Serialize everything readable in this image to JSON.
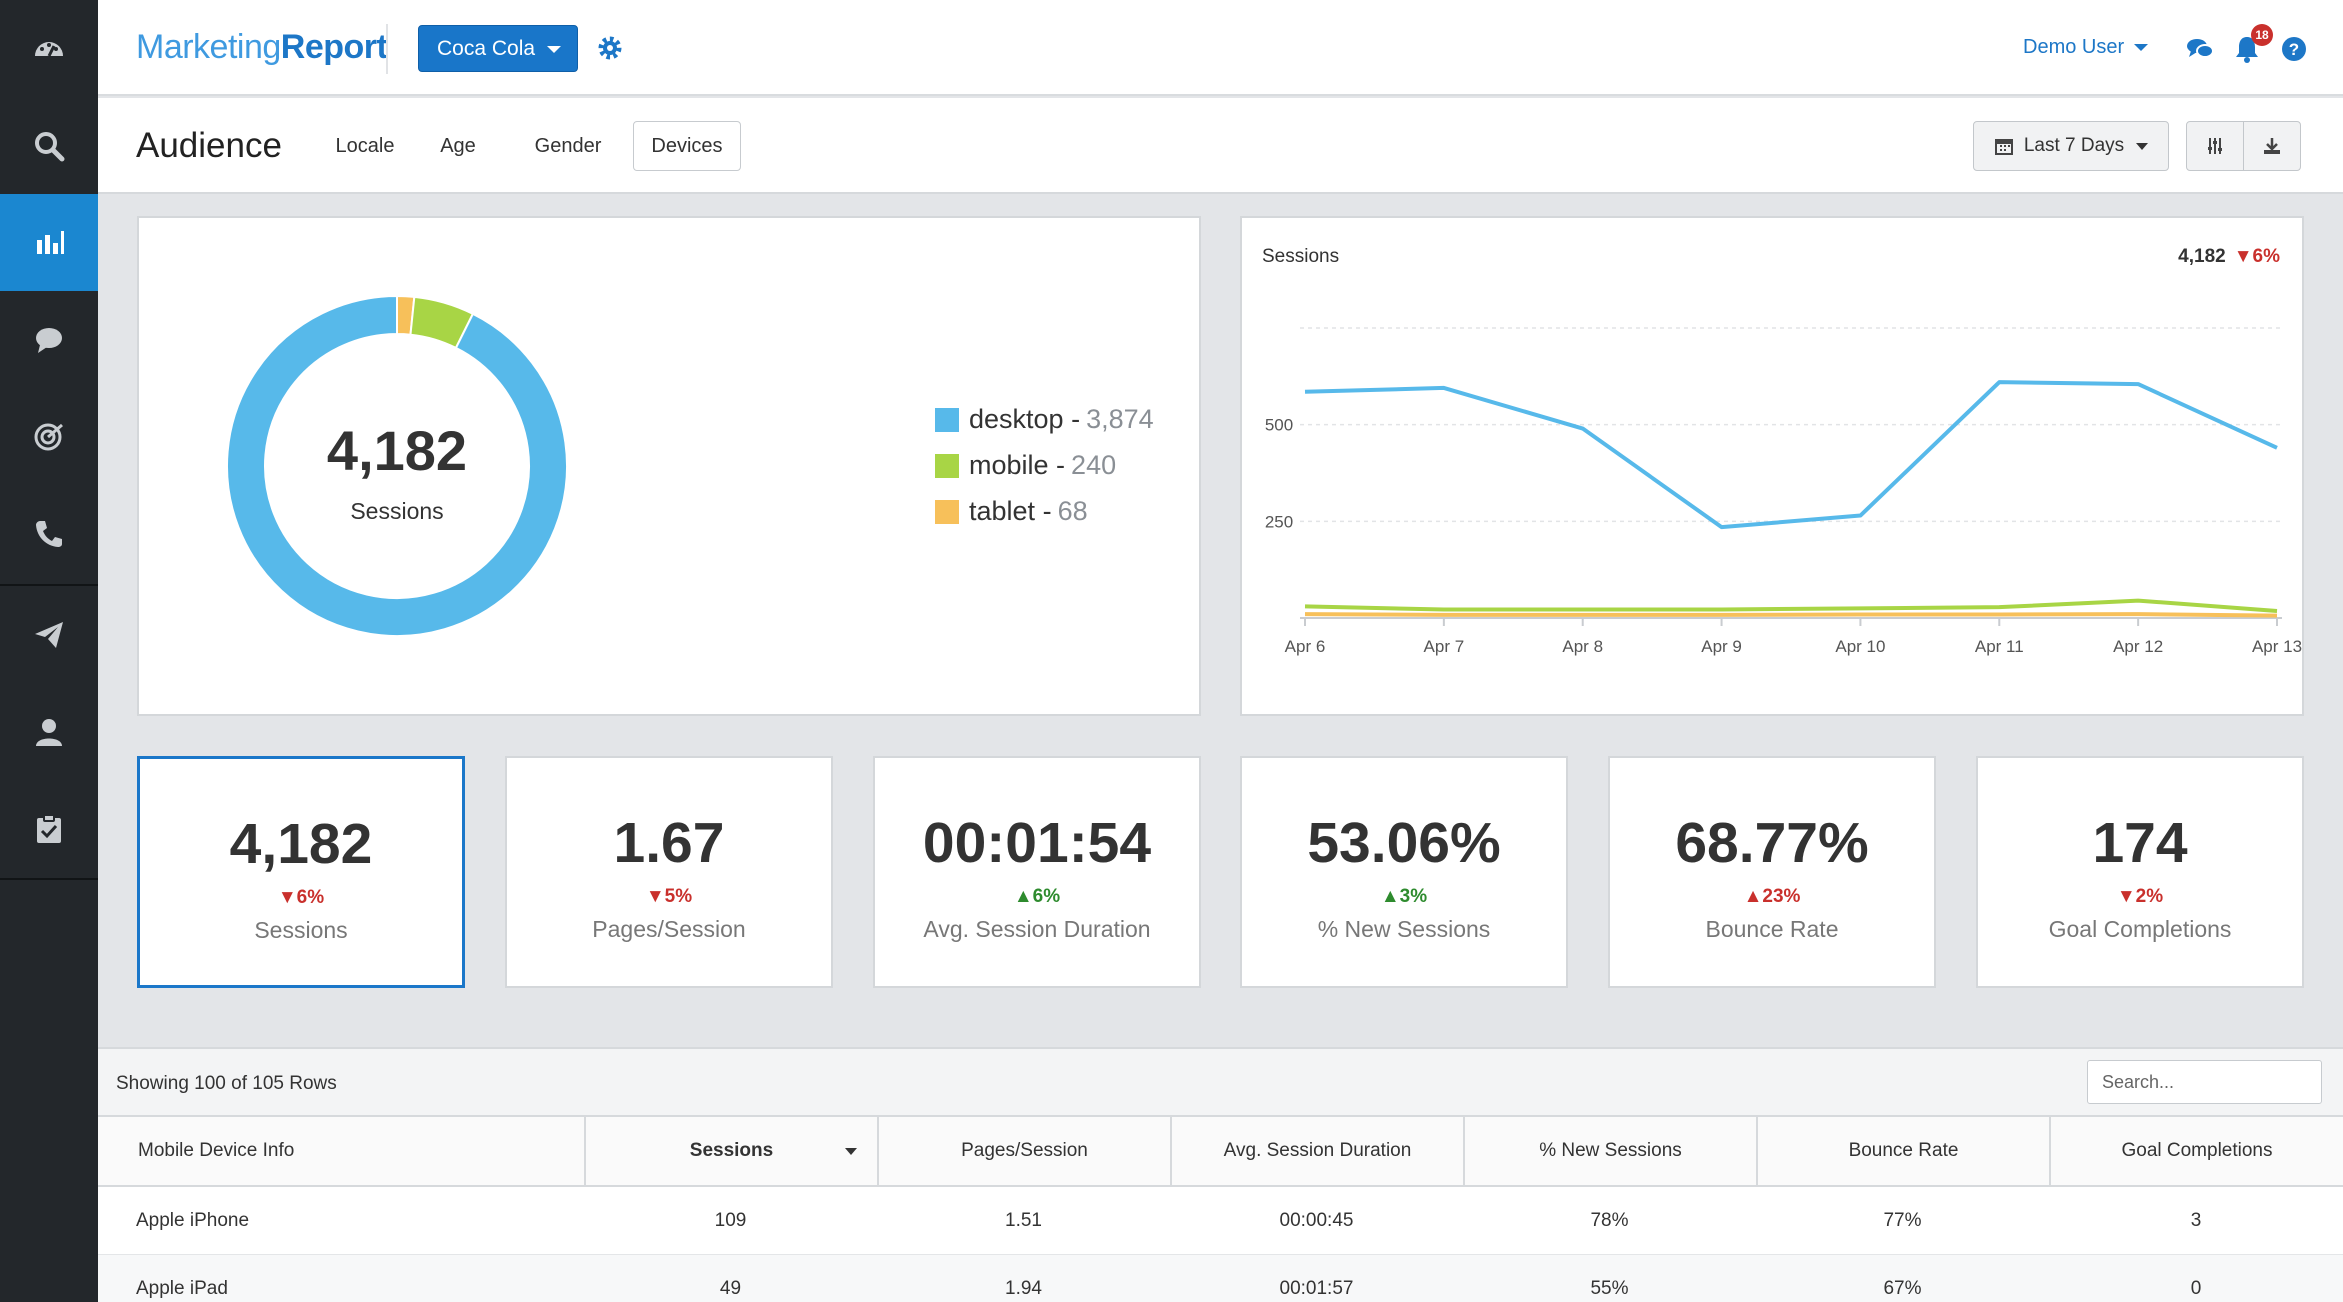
{
  "app": {
    "logo_light": "Marketing",
    "logo_bold": "Report"
  },
  "header": {
    "client": "Coca Cola",
    "user": "Demo User",
    "notification_count": "18"
  },
  "subheader": {
    "title": "Audience",
    "tabs": [
      "Locale",
      "Age",
      "Gender",
      "Devices"
    ],
    "selected_tab": "Devices",
    "date_range": "Last 7 Days"
  },
  "donut": {
    "total": "4,182",
    "label": "Sessions",
    "legend": [
      {
        "name": "desktop",
        "value": "3,874",
        "color": "#57b9ea"
      },
      {
        "name": "mobile",
        "value": "240",
        "color": "#a8d545"
      },
      {
        "name": "tablet",
        "value": "68",
        "color": "#f7c05a"
      }
    ]
  },
  "chart_data": [
    {
      "type": "pie",
      "categories": [
        "desktop",
        "mobile",
        "tablet"
      ],
      "values": [
        3874,
        240,
        68
      ],
      "colors": [
        "#57b9ea",
        "#a8d545",
        "#f7c05a"
      ],
      "title": "",
      "center_total": "4,182",
      "center_label": "Sessions"
    },
    {
      "type": "line",
      "title": "Sessions",
      "total": "4,182",
      "change": "▼6%",
      "x": [
        "Apr 6",
        "Apr 7",
        "Apr 8",
        "Apr 9",
        "Apr 10",
        "Apr 11",
        "Apr 12",
        "Apr 13"
      ],
      "y_ticks": [
        250,
        500
      ],
      "ylim": [
        0,
        750
      ],
      "grid": true,
      "series": [
        {
          "name": "desktop",
          "color": "#57b9ea",
          "values": [
            585,
            595,
            490,
            235,
            265,
            610,
            605,
            440
          ]
        },
        {
          "name": "mobile",
          "color": "#a8d545",
          "values": [
            30,
            22,
            22,
            22,
            25,
            28,
            45,
            18
          ]
        },
        {
          "name": "tablet",
          "color": "#f7c05a",
          "values": [
            10,
            8,
            8,
            8,
            9,
            9,
            10,
            6
          ]
        }
      ]
    }
  ],
  "kpis": [
    {
      "value": "4,182",
      "change": "▼6%",
      "dir": "down",
      "label": "Sessions"
    },
    {
      "value": "1.67",
      "change": "▼5%",
      "dir": "down",
      "label": "Pages/Session"
    },
    {
      "value": "00:01:54",
      "change": "▲6%",
      "dir": "up",
      "label": "Avg. Session Duration"
    },
    {
      "value": "53.06%",
      "change": "▲3%",
      "dir": "up",
      "label": "% New Sessions"
    },
    {
      "value": "68.77%",
      "change": "▲23%",
      "dir": "down",
      "label": "Bounce Rate"
    },
    {
      "value": "174",
      "change": "▼2%",
      "dir": "down",
      "label": "Goal Completions"
    }
  ],
  "table": {
    "row_count": "Showing 100 of 105 Rows",
    "search_placeholder": "Search...",
    "columns": [
      "Mobile Device Info",
      "Sessions",
      "Pages/Session",
      "Avg. Session Duration",
      "% New Sessions",
      "Bounce Rate",
      "Goal Completions"
    ],
    "rows": [
      [
        "Apple iPhone",
        "109",
        "1.51",
        "00:00:45",
        "78%",
        "77%",
        "3"
      ],
      [
        "Apple iPad",
        "49",
        "1.94",
        "00:01:57",
        "55%",
        "67%",
        "0"
      ]
    ]
  }
}
